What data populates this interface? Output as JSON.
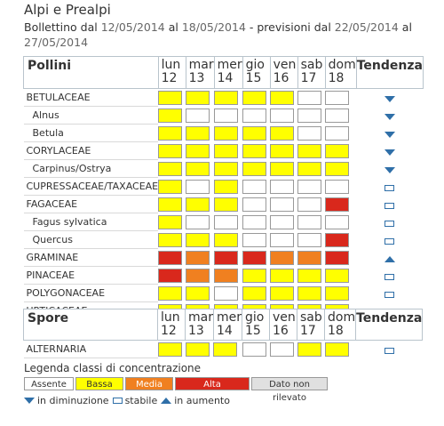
{
  "header": {
    "title": "Alpi e Prealpi",
    "bulletin_prefix": "Bollettino dal ",
    "bulletin_from": "12/05/2014",
    "bulletin_mid": " al ",
    "bulletin_to": "18/05/2014",
    "forecast_prefix": " - previsioni dal ",
    "forecast_from": "22/05/2014",
    "forecast_mid": " al ",
    "forecast_to": "27/05/2014"
  },
  "table": {
    "pollen_label": "Pollini",
    "spore_label": "Spore",
    "trend_label": "Tendenza",
    "days": [
      {
        "name": "lun",
        "num": "12"
      },
      {
        "name": "mar",
        "num": "13"
      },
      {
        "name": "mer",
        "num": "14"
      },
      {
        "name": "gio",
        "num": "15"
      },
      {
        "name": "ven",
        "num": "16"
      },
      {
        "name": "sab",
        "num": "17"
      },
      {
        "name": "dom",
        "num": "18"
      }
    ],
    "pollen_rows": [
      {
        "name": "BETULACEAE",
        "sub": false,
        "levels": [
          1,
          1,
          1,
          1,
          1,
          0,
          0
        ],
        "trend": "down"
      },
      {
        "name": "Alnus",
        "sub": true,
        "levels": [
          1,
          0,
          0,
          0,
          0,
          0,
          0
        ],
        "trend": "down"
      },
      {
        "name": "Betula",
        "sub": true,
        "levels": [
          1,
          1,
          1,
          1,
          1,
          0,
          0
        ],
        "trend": "down"
      },
      {
        "name": "CORYLACEAE",
        "sub": false,
        "levels": [
          1,
          1,
          1,
          1,
          1,
          1,
          1
        ],
        "trend": "down"
      },
      {
        "name": "Carpinus/Ostrya",
        "sub": true,
        "levels": [
          1,
          1,
          1,
          1,
          1,
          1,
          1
        ],
        "trend": "down"
      },
      {
        "name": "CUPRESSACEAE/TAXACEAE",
        "sub": false,
        "levels": [
          1,
          0,
          1,
          0,
          0,
          0,
          0
        ],
        "trend": "stable"
      },
      {
        "name": "FAGACEAE",
        "sub": false,
        "levels": [
          1,
          1,
          1,
          0,
          0,
          0,
          3
        ],
        "trend": "stable"
      },
      {
        "name": "Fagus sylvatica",
        "sub": true,
        "levels": [
          1,
          0,
          0,
          0,
          0,
          0,
          0
        ],
        "trend": "stable"
      },
      {
        "name": "Quercus",
        "sub": true,
        "levels": [
          1,
          1,
          1,
          0,
          0,
          0,
          3
        ],
        "trend": "stable"
      },
      {
        "name": "GRAMINAE",
        "sub": false,
        "levels": [
          3,
          2,
          3,
          3,
          2,
          2,
          3
        ],
        "trend": "up"
      },
      {
        "name": "PINACEAE",
        "sub": false,
        "levels": [
          3,
          2,
          2,
          1,
          1,
          1,
          1
        ],
        "trend": "stable"
      },
      {
        "name": "POLYGONACEAE",
        "sub": false,
        "levels": [
          1,
          1,
          0,
          1,
          1,
          1,
          1
        ],
        "trend": "stable"
      },
      {
        "name": "URTICACEAE",
        "sub": false,
        "levels": [
          1,
          1,
          1,
          1,
          1,
          1,
          1
        ],
        "trend": "stable"
      }
    ],
    "spore_rows": [
      {
        "name": "ALTERNARIA",
        "sub": false,
        "levels": [
          1,
          1,
          1,
          0,
          0,
          1,
          1
        ],
        "trend": "stable"
      }
    ]
  },
  "legend": {
    "title": "Legenda classi di concentrazione",
    "classes": [
      "Assente",
      "Bassa",
      "Media",
      "Alta",
      "Dato non rilevato"
    ],
    "trend_down": "in diminuzione",
    "trend_stable": "stabile",
    "trend_up": "in aumento"
  },
  "colors": {
    "absent": "#ffffff",
    "low": "#ffff00",
    "medium": "#f08020",
    "high": "#d9281c",
    "not_detected": "#e0e0e0",
    "trend_arrow": "#2f6fa8"
  }
}
